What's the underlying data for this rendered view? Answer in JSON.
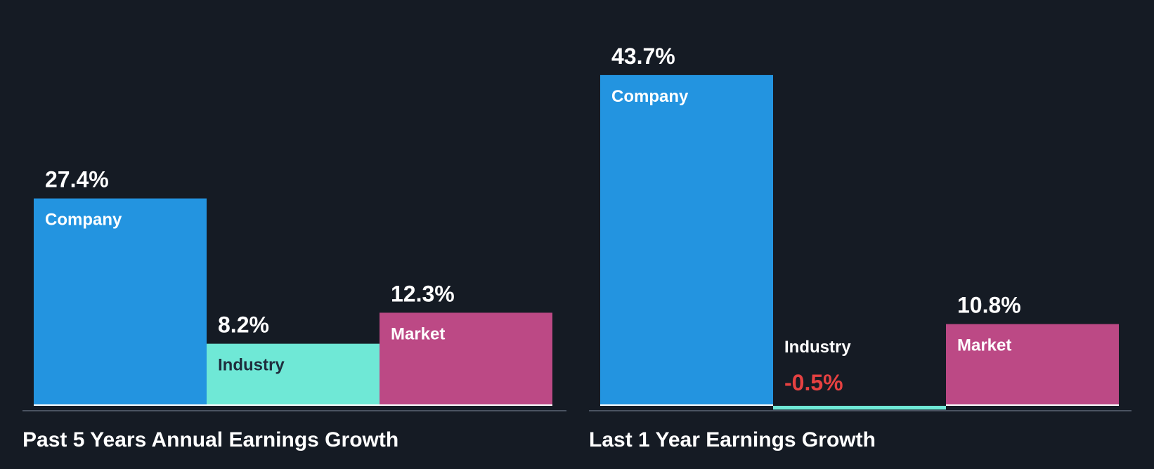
{
  "colors": {
    "background": "#151b24",
    "company": "#2394e0",
    "industry": "#6fe8d6",
    "market": "#bc4985",
    "negative_text": "#e64141",
    "light_label": "#ffffff",
    "dark_label": "#1f2d3d",
    "axis": "#4a5361"
  },
  "chart_data": [
    {
      "type": "bar",
      "title": "Past 5 Years Annual Earnings Growth",
      "categories": [
        "Company",
        "Industry",
        "Market"
      ],
      "values": [
        27.4,
        8.2,
        12.3
      ],
      "value_labels": [
        "27.4%",
        "8.2%",
        "12.3%"
      ],
      "unit": "%",
      "ylim": [
        -1,
        45
      ],
      "grid": false,
      "legend": "none"
    },
    {
      "type": "bar",
      "title": "Last 1 Year Earnings Growth",
      "categories": [
        "Company",
        "Industry",
        "Market"
      ],
      "values": [
        43.7,
        -0.5,
        10.8
      ],
      "value_labels": [
        "43.7%",
        "-0.5%",
        "10.8%"
      ],
      "unit": "%",
      "ylim": [
        -1,
        45
      ],
      "grid": false,
      "legend": "none"
    }
  ]
}
